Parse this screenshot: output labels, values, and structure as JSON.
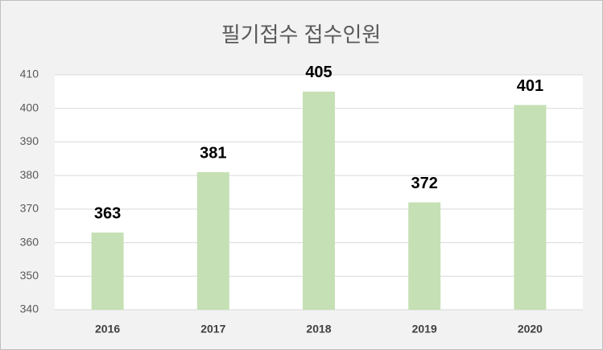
{
  "chart_data": {
    "type": "bar",
    "title": "필기접수 접수인원",
    "categories": [
      "2016",
      "2017",
      "2018",
      "2019",
      "2020"
    ],
    "values": [
      363,
      381,
      405,
      372,
      401
    ],
    "color": "#c5e0b4",
    "ylim": [
      340,
      410
    ],
    "yticks": [
      340,
      350,
      360,
      370,
      380,
      390,
      400,
      410
    ],
    "grid": true
  }
}
